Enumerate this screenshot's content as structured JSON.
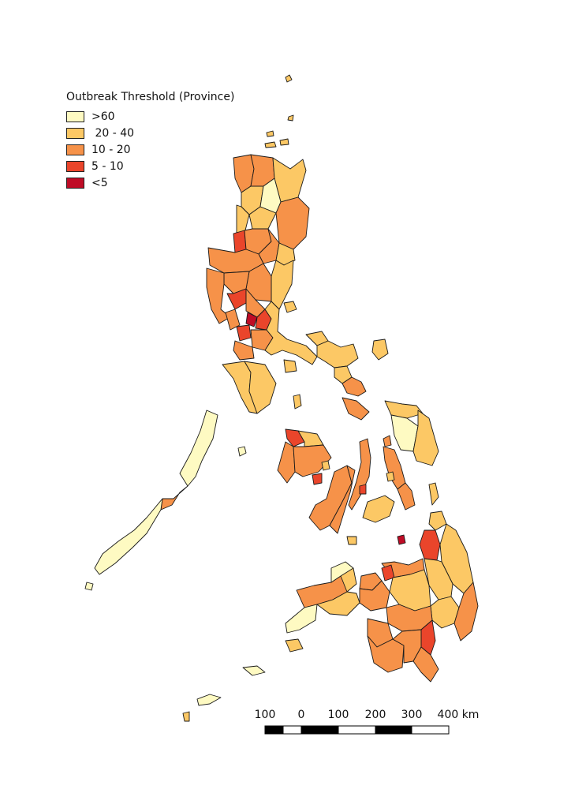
{
  "legend": {
    "title": "Outbreak Threshold (Province)",
    "classes": [
      {
        "key": "gt60",
        "label": ">60",
        "color": "#fefac2"
      },
      {
        "key": "c20_40",
        "label": " 20 - 40",
        "color": "#fcc865"
      },
      {
        "key": "c10_20",
        "label": "10 - 20",
        "color": "#f69249"
      },
      {
        "key": "c5_10",
        "label": "5 - 10",
        "color": "#ea452b"
      },
      {
        "key": "lt5",
        "label": "<5",
        "color": "#bf0c26"
      }
    ]
  },
  "scalebar": {
    "labels": [
      "100",
      "0",
      "100",
      "200",
      "300",
      "400 km"
    ]
  }
}
